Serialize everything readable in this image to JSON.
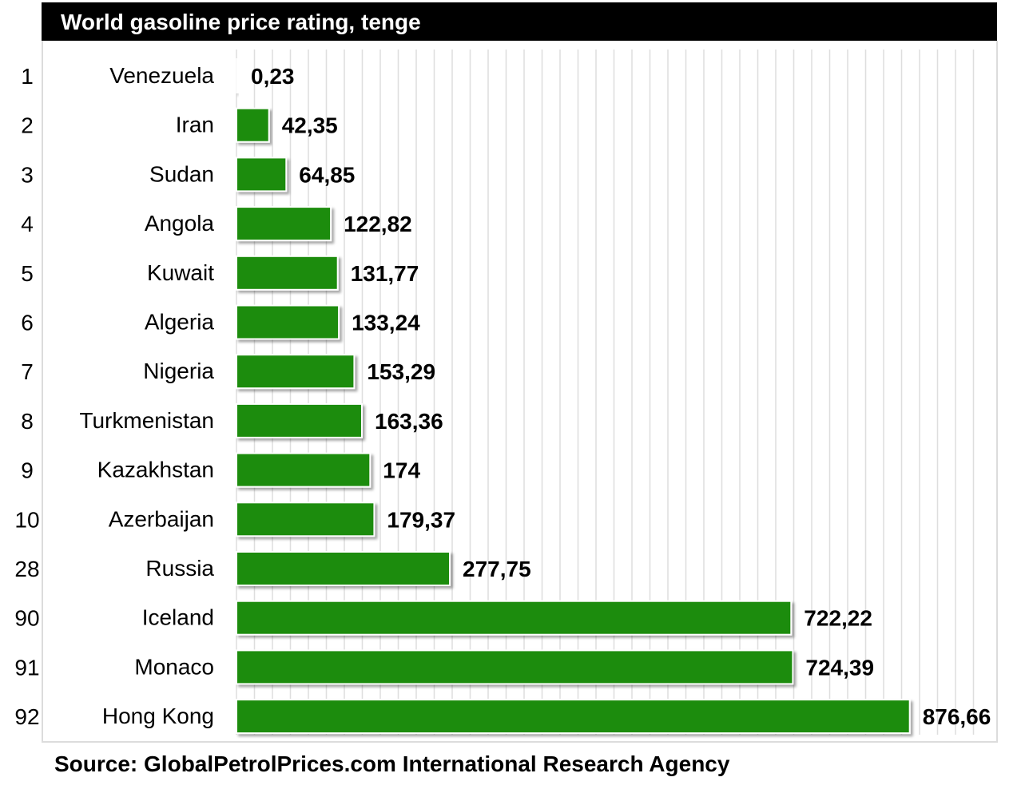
{
  "title": "World gasoline price rating, tenge",
  "source": "Source: GlobalPetrolPrices.com International Research Agency",
  "colors": {
    "bar": "#1e8c0c",
    "bar_edge": "#0f5a06",
    "grid": "#dedede",
    "title_bg": "#000000"
  },
  "chart_data": {
    "type": "bar",
    "orientation": "horizontal",
    "title": "World gasoline price rating, tenge",
    "xlim": [
      0,
      1000
    ],
    "grid": true,
    "legend": "none",
    "ranks": [
      "1",
      "2",
      "3",
      "4",
      "5",
      "6",
      "7",
      "8",
      "9",
      "10",
      "28",
      "90",
      "91",
      "92"
    ],
    "categories": [
      "Venezuela",
      "Iran",
      "Sudan",
      "Angola",
      "Kuwait",
      "Algeria",
      "Nigeria",
      "Turkmenistan",
      "Kazakhstan",
      "Azerbaijan",
      "Russia",
      "Iceland",
      "Monaco",
      "Hong Kong"
    ],
    "values": [
      0.23,
      42.35,
      64.85,
      122.82,
      131.77,
      133.24,
      153.29,
      163.36,
      174,
      179.37,
      277.75,
      722.22,
      724.39,
      876.66
    ],
    "value_labels": [
      "0,23",
      "42,35",
      "64,85",
      "122,82",
      "131,77",
      "133,24",
      "153,29",
      "163,36",
      "174",
      "179,37",
      "277,75",
      "722,22",
      "724,39",
      "876,66"
    ]
  }
}
